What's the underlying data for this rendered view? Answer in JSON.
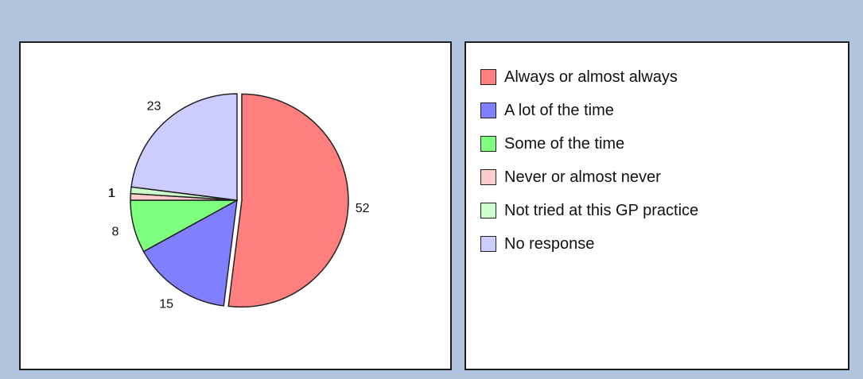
{
  "chart_data": {
    "type": "pie",
    "categories": [
      "Always or almost always",
      "A lot of the time",
      "Some of the time",
      "Never or almost never",
      "Not tried at this GP practice",
      "No response"
    ],
    "values": [
      52,
      15,
      8,
      1,
      1,
      23
    ],
    "colors": [
      "#ff7f7f",
      "#7f7fff",
      "#7fff7f",
      "#ffcccc",
      "#ccffcc",
      "#ccccff"
    ],
    "data_labels": [
      "52",
      "15",
      "8",
      "1",
      "1",
      "23"
    ],
    "exploded_slice": "Always or almost always",
    "legend_position": "right panel"
  }
}
